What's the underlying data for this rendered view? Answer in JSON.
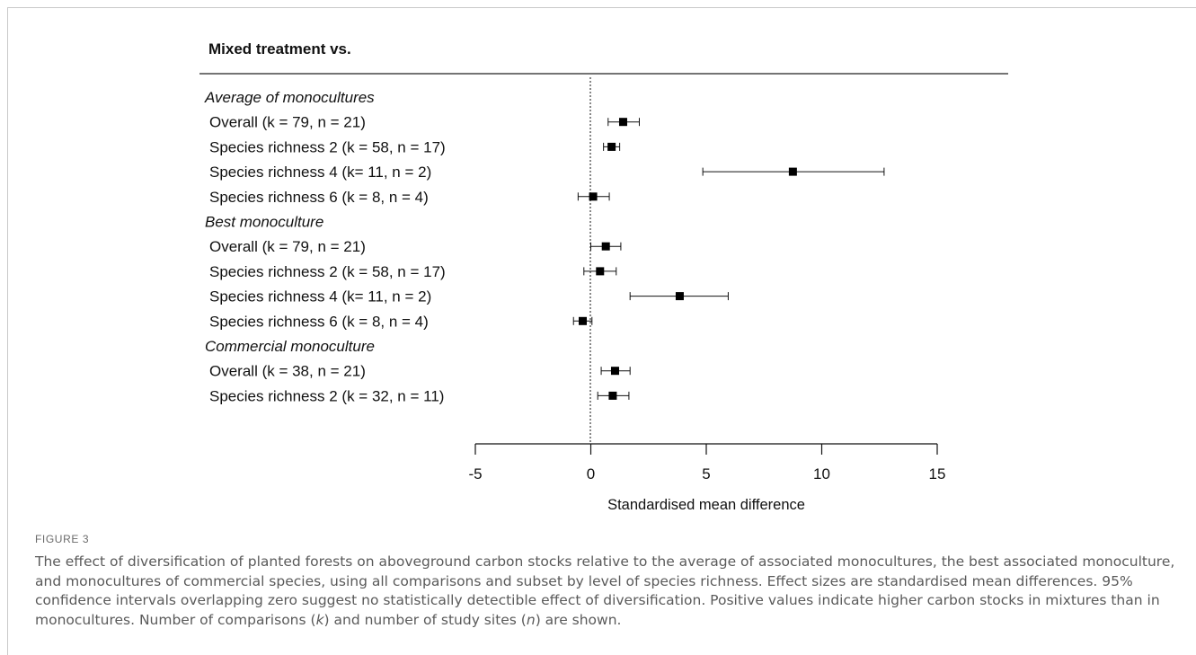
{
  "chart_data": {
    "type": "forest",
    "title": "Mixed treatment vs.",
    "xlabel": "Standardised mean difference",
    "xlim": [
      -5,
      15
    ],
    "xticks": [
      -5,
      0,
      5,
      10,
      15
    ],
    "reference_line": 0,
    "rows": [
      {
        "kind": "group",
        "label": "Average of monocultures"
      },
      {
        "kind": "row",
        "label": "Overall (k = 79, n = 21)",
        "estimate": 1.4,
        "ci_low": 0.75,
        "ci_high": 2.1
      },
      {
        "kind": "row",
        "label": "Species richness 2 (k = 58, n = 17)",
        "estimate": 0.9,
        "ci_low": 0.55,
        "ci_high": 1.25
      },
      {
        "kind": "row",
        "label": "Species richness 4 (k= 11, n = 2)",
        "estimate": 8.75,
        "ci_low": 4.85,
        "ci_high": 12.7
      },
      {
        "kind": "row",
        "label": "Species richness 6 (k = 8, n = 4)",
        "estimate": 0.1,
        "ci_low": -0.55,
        "ci_high": 0.8
      },
      {
        "kind": "group",
        "label": "Best monoculture"
      },
      {
        "kind": "row",
        "label": "Overall (k = 79, n = 21)",
        "estimate": 0.65,
        "ci_low": 0.0,
        "ci_high": 1.3
      },
      {
        "kind": "row",
        "label": "Species richness 2 (k = 58, n = 17)",
        "estimate": 0.4,
        "ci_low": -0.3,
        "ci_high": 1.1
      },
      {
        "kind": "row",
        "label": "Species richness 4 (k= 11, n = 2)",
        "estimate": 3.85,
        "ci_low": 1.7,
        "ci_high": 5.95
      },
      {
        "kind": "row",
        "label": "Species richness 6 (k = 8, n = 4)",
        "estimate": -0.35,
        "ci_low": -0.75,
        "ci_high": 0.05
      },
      {
        "kind": "group",
        "label": "Commercial monoculture"
      },
      {
        "kind": "row",
        "label": "Overall (k = 38, n = 21)",
        "estimate": 1.05,
        "ci_low": 0.45,
        "ci_high": 1.7
      },
      {
        "kind": "row",
        "label": "Species richness 2 (k = 32, n = 11)",
        "estimate": 0.95,
        "ci_low": 0.3,
        "ci_high": 1.65
      }
    ],
    "colors": {
      "marker": "#000000",
      "text": "#111111"
    }
  },
  "caption": {
    "label": "FIGURE 3",
    "text_before_k": "The effect of diversification of planted forests on aboveground carbon stocks relative to the average of associated monocultures, the best associated monoculture, and monocultures of commercial species, using all comparisons and subset by level of species richness. Effect sizes are standardised mean differences. 95% confidence intervals overlapping zero suggest no statistically detectible effect of diversification. Positive values indicate higher carbon stocks in mixtures than in monocultures. Number of comparisons (",
    "k_symbol": "k",
    "text_between": ") and number of study sites (",
    "n_symbol": "n",
    "text_after_n": ") are shown."
  }
}
